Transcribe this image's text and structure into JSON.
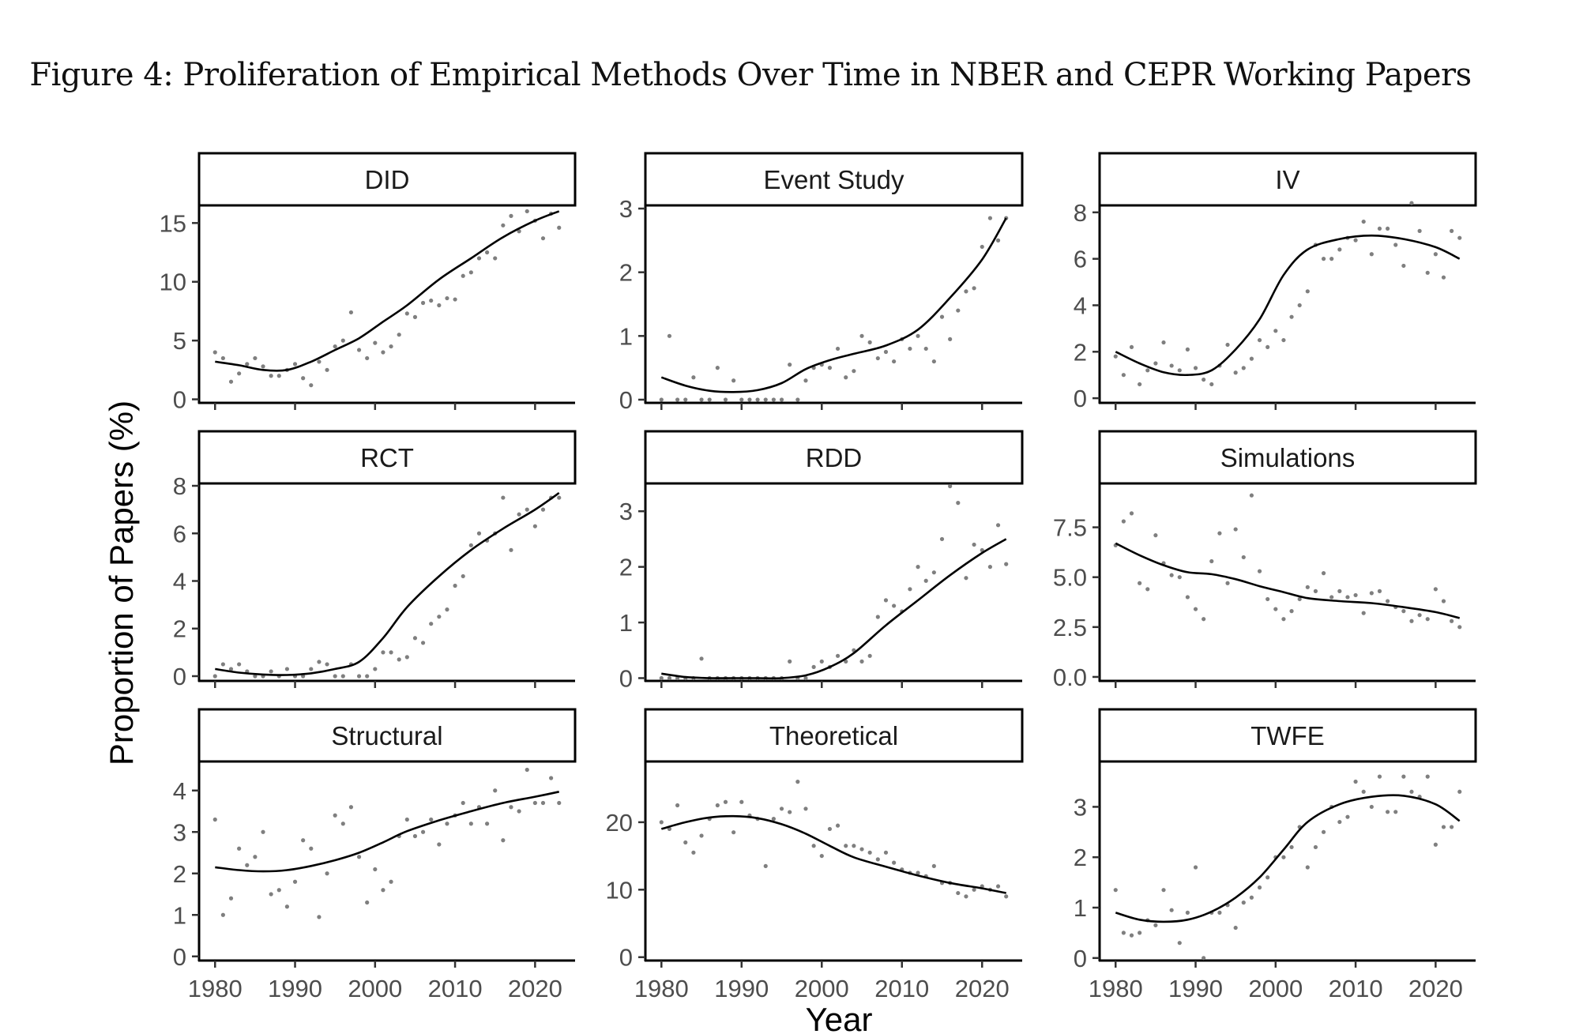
{
  "figure": {
    "title": "Figure 4: Proliferation of Empirical Methods Over Time in NBER and CEPR Working Papers"
  },
  "chart_data": {
    "type": "scatter",
    "layout": "3x3 facets",
    "xlabel": "Year",
    "ylabel": "Proportion of Papers (%)",
    "x_ticks": [
      1980,
      1990,
      2000,
      2010,
      2020
    ],
    "xlim": [
      1978,
      2025
    ],
    "point_color": "#7f7f7f",
    "line_color": "#000000",
    "panels": [
      {
        "name": "DID",
        "ylim": [
          -0.3,
          16.5
        ],
        "yticks": [
          0,
          5,
          10,
          15
        ],
        "ytick_labels": [
          "0",
          "5",
          "10",
          "15"
        ],
        "x": [
          1980,
          1981,
          1982,
          1983,
          1984,
          1985,
          1986,
          1987,
          1988,
          1989,
          1990,
          1991,
          1992,
          1993,
          1994,
          1995,
          1996,
          1997,
          1998,
          1999,
          2000,
          2001,
          2002,
          2003,
          2004,
          2005,
          2006,
          2007,
          2008,
          2009,
          2010,
          2011,
          2012,
          2013,
          2014,
          2015,
          2016,
          2017,
          2018,
          2019,
          2020,
          2021,
          2022,
          2023
        ],
        "points": [
          4.0,
          3.5,
          1.5,
          2.2,
          3.0,
          3.5,
          2.8,
          2.0,
          2.0,
          2.5,
          3.0,
          1.8,
          1.2,
          3.2,
          2.5,
          4.5,
          5.0,
          7.4,
          4.2,
          3.5,
          4.8,
          4.0,
          4.5,
          5.5,
          7.3,
          7.0,
          8.2,
          8.4,
          8.0,
          8.6,
          8.5,
          10.5,
          10.8,
          12.0,
          12.5,
          12.0,
          14.8,
          15.6,
          14.3,
          16.0,
          15.2,
          13.7,
          15.8,
          14.6
        ],
        "trend": [
          3.2,
          2.9,
          2.5,
          2.5,
          3.2,
          4.2,
          5.2,
          6.6,
          8.0,
          10.2,
          12.0,
          13.8,
          15.2,
          16.0
        ]
      },
      {
        "name": "Event Study",
        "ylim": [
          -0.05,
          3.05
        ],
        "yticks": [
          0,
          1,
          2,
          3
        ],
        "ytick_labels": [
          "0",
          "1",
          "2",
          "3"
        ],
        "x": [
          1980,
          1981,
          1982,
          1983,
          1984,
          1985,
          1986,
          1987,
          1988,
          1989,
          1990,
          1991,
          1992,
          1993,
          1994,
          1995,
          1996,
          1997,
          1998,
          1999,
          2000,
          2001,
          2002,
          2003,
          2004,
          2005,
          2006,
          2007,
          2008,
          2009,
          2010,
          2011,
          2012,
          2013,
          2014,
          2015,
          2016,
          2017,
          2018,
          2019,
          2020,
          2021,
          2022,
          2023
        ],
        "points": [
          0.0,
          1.0,
          0.0,
          0.0,
          0.35,
          0.0,
          0.0,
          0.5,
          0.0,
          0.3,
          0.0,
          0.0,
          0.0,
          0.0,
          0.0,
          0.0,
          0.55,
          0.0,
          0.3,
          0.5,
          0.55,
          0.5,
          0.8,
          0.35,
          0.45,
          1.0,
          0.9,
          0.65,
          0.75,
          0.6,
          0.95,
          0.8,
          1.0,
          0.8,
          0.6,
          1.3,
          0.95,
          1.4,
          1.7,
          1.75,
          2.4,
          2.85,
          2.5,
          2.85
        ],
        "trend": [
          0.35,
          0.22,
          0.14,
          0.12,
          0.15,
          0.26,
          0.48,
          0.62,
          0.72,
          0.85,
          1.1,
          1.6,
          2.2,
          2.85
        ]
      },
      {
        "name": "IV",
        "ylim": [
          -0.2,
          8.3
        ],
        "yticks": [
          0,
          2,
          4,
          6,
          8
        ],
        "ytick_labels": [
          "0",
          "2",
          "4",
          "6",
          "8"
        ],
        "x": [
          1980,
          1981,
          1982,
          1983,
          1984,
          1985,
          1986,
          1987,
          1988,
          1989,
          1990,
          1991,
          1992,
          1993,
          1994,
          1995,
          1996,
          1997,
          1998,
          1999,
          2000,
          2001,
          2002,
          2003,
          2004,
          2005,
          2006,
          2007,
          2008,
          2009,
          2010,
          2011,
          2012,
          2013,
          2014,
          2015,
          2016,
          2017,
          2018,
          2019,
          2020,
          2021,
          2022,
          2023
        ],
        "points": [
          1.8,
          1.0,
          2.2,
          0.6,
          1.2,
          1.5,
          2.4,
          1.4,
          1.2,
          2.1,
          1.3,
          0.8,
          0.6,
          1.4,
          2.3,
          1.1,
          1.3,
          1.7,
          2.5,
          2.2,
          2.9,
          2.5,
          3.5,
          4.0,
          4.6,
          6.6,
          6.0,
          6.0,
          6.4,
          6.9,
          6.8,
          7.6,
          6.2,
          7.3,
          7.3,
          6.6,
          5.7,
          8.4,
          7.2,
          5.4,
          6.2,
          5.2,
          7.2,
          6.9
        ],
        "trend": [
          2.0,
          1.5,
          1.12,
          1.0,
          1.2,
          2.1,
          3.4,
          5.3,
          6.4,
          6.85,
          7.0,
          6.85,
          6.5,
          6.0
        ]
      },
      {
        "name": "RCT",
        "ylim": [
          -0.2,
          8.1
        ],
        "yticks": [
          0,
          2,
          4,
          6,
          8
        ],
        "ytick_labels": [
          "0",
          "2",
          "4",
          "6",
          "8"
        ],
        "x": [
          1980,
          1981,
          1982,
          1983,
          1984,
          1985,
          1986,
          1987,
          1988,
          1989,
          1990,
          1991,
          1992,
          1993,
          1994,
          1995,
          1996,
          1997,
          1998,
          1999,
          2000,
          2001,
          2002,
          2003,
          2004,
          2005,
          2006,
          2007,
          2008,
          2009,
          2010,
          2011,
          2012,
          2013,
          2014,
          2015,
          2016,
          2017,
          2018,
          2019,
          2020,
          2021,
          2022,
          2023
        ],
        "points": [
          0.0,
          0.5,
          0.3,
          0.5,
          0.2,
          0.0,
          0.0,
          0.2,
          0.0,
          0.3,
          0.0,
          0.0,
          0.3,
          0.6,
          0.5,
          0.0,
          0.0,
          0.5,
          0.0,
          0.0,
          0.3,
          1.0,
          1.0,
          0.7,
          0.8,
          1.6,
          1.4,
          2.2,
          2.5,
          2.8,
          3.8,
          4.2,
          5.5,
          6.0,
          5.7,
          6.0,
          7.5,
          5.3,
          6.8,
          7.0,
          6.3,
          7.0,
          7.5,
          7.5
        ],
        "trend": [
          0.3,
          0.15,
          0.07,
          0.05,
          0.12,
          0.3,
          0.6,
          1.6,
          2.9,
          4.2,
          5.3,
          6.2,
          7.0,
          7.7
        ]
      },
      {
        "name": "RDD",
        "ylim": [
          -0.05,
          3.5
        ],
        "yticks": [
          0,
          1,
          2,
          3
        ],
        "ytick_labels": [
          "0",
          "1",
          "2",
          "3"
        ],
        "x": [
          1980,
          1981,
          1982,
          1983,
          1984,
          1985,
          1986,
          1987,
          1988,
          1989,
          1990,
          1991,
          1992,
          1993,
          1994,
          1995,
          1996,
          1997,
          1998,
          1999,
          2000,
          2001,
          2002,
          2003,
          2004,
          2005,
          2006,
          2007,
          2008,
          2009,
          2010,
          2011,
          2012,
          2013,
          2014,
          2015,
          2016,
          2017,
          2018,
          2019,
          2020,
          2021,
          2022,
          2023
        ],
        "points": [
          0.0,
          0.0,
          0.0,
          0.0,
          0.0,
          0.35,
          0.0,
          0.0,
          0.0,
          0.0,
          0.0,
          0.0,
          0.0,
          0.0,
          0.0,
          0.0,
          0.3,
          0.0,
          0.0,
          0.2,
          0.3,
          0.2,
          0.4,
          0.3,
          0.5,
          0.3,
          0.4,
          1.1,
          1.4,
          1.3,
          1.2,
          1.6,
          2.0,
          1.75,
          1.9,
          2.5,
          3.45,
          3.15,
          1.8,
          2.4,
          2.3,
          2.0,
          2.75,
          2.05
        ],
        "trend": [
          0.08,
          0.02,
          0.0,
          0.0,
          0.0,
          0.0,
          0.05,
          0.2,
          0.45,
          0.95,
          1.4,
          1.85,
          2.25,
          2.5
        ]
      },
      {
        "name": "Simulations",
        "ylim": [
          -0.2,
          9.7
        ],
        "yticks": [
          0,
          2.5,
          5,
          7.5
        ],
        "ytick_labels": [
          "0.0",
          "2.5",
          "5.0",
          "7.5"
        ],
        "x": [
          1980,
          1981,
          1982,
          1983,
          1984,
          1985,
          1986,
          1987,
          1988,
          1989,
          1990,
          1991,
          1992,
          1993,
          1994,
          1995,
          1996,
          1997,
          1998,
          1999,
          2000,
          2001,
          2002,
          2003,
          2004,
          2005,
          2006,
          2007,
          2008,
          2009,
          2010,
          2011,
          2012,
          2013,
          2014,
          2015,
          2016,
          2017,
          2018,
          2019,
          2020,
          2021,
          2022,
          2023
        ],
        "points": [
          6.6,
          7.8,
          8.2,
          4.7,
          4.4,
          7.1,
          5.7,
          5.1,
          5.0,
          4.0,
          3.4,
          2.9,
          5.8,
          7.2,
          4.7,
          7.4,
          6.0,
          9.1,
          5.3,
          3.9,
          3.4,
          2.9,
          3.3,
          3.9,
          4.5,
          4.3,
          5.2,
          4.0,
          4.3,
          4.0,
          4.1,
          3.2,
          4.2,
          4.3,
          3.8,
          3.5,
          3.3,
          2.8,
          3.1,
          2.9,
          4.4,
          3.8,
          2.8,
          2.5
        ],
        "trend": [
          6.7,
          6.1,
          5.6,
          5.25,
          5.15,
          4.9,
          4.55,
          4.25,
          3.95,
          3.8,
          3.7,
          3.5,
          3.25,
          2.95
        ]
      },
      {
        "name": "Structural",
        "ylim": [
          -0.1,
          4.7
        ],
        "yticks": [
          0,
          1,
          2,
          3,
          4
        ],
        "ytick_labels": [
          "0",
          "1",
          "2",
          "3",
          "4"
        ],
        "x": [
          1980,
          1981,
          1982,
          1983,
          1984,
          1985,
          1986,
          1987,
          1988,
          1989,
          1990,
          1991,
          1992,
          1993,
          1994,
          1995,
          1996,
          1997,
          1998,
          1999,
          2000,
          2001,
          2002,
          2003,
          2004,
          2005,
          2006,
          2007,
          2008,
          2009,
          2010,
          2011,
          2012,
          2013,
          2014,
          2015,
          2016,
          2017,
          2018,
          2019,
          2020,
          2021,
          2022,
          2023
        ],
        "points": [
          3.3,
          1.0,
          1.4,
          2.6,
          2.2,
          2.4,
          3.0,
          1.5,
          1.6,
          1.2,
          1.8,
          2.8,
          2.6,
          0.95,
          2.0,
          3.4,
          3.2,
          3.6,
          2.4,
          1.3,
          2.1,
          1.6,
          1.8,
          2.9,
          3.3,
          2.9,
          3.0,
          3.3,
          2.7,
          3.2,
          3.4,
          3.7,
          3.2,
          3.6,
          3.2,
          4.0,
          2.8,
          3.6,
          3.5,
          4.5,
          3.7,
          3.7,
          4.3,
          3.7
        ],
        "trend": [
          2.15,
          2.08,
          2.05,
          2.08,
          2.18,
          2.32,
          2.5,
          2.75,
          3.02,
          3.28,
          3.5,
          3.7,
          3.85,
          3.97
        ]
      },
      {
        "name": "Theoretical",
        "ylim": [
          -0.5,
          29.0
        ],
        "yticks": [
          0,
          10,
          20
        ],
        "ytick_labels": [
          "0",
          "10",
          "20"
        ],
        "x": [
          1980,
          1981,
          1982,
          1983,
          1984,
          1985,
          1986,
          1987,
          1988,
          1989,
          1990,
          1991,
          1992,
          1993,
          1994,
          1995,
          1996,
          1997,
          1998,
          1999,
          2000,
          2001,
          2002,
          2003,
          2004,
          2005,
          2006,
          2007,
          2008,
          2009,
          2010,
          2011,
          2012,
          2013,
          2014,
          2015,
          2016,
          2017,
          2018,
          2019,
          2020,
          2021,
          2022,
          2023
        ],
        "points": [
          20.0,
          19.0,
          22.5,
          17.0,
          15.5,
          18.0,
          20.5,
          22.5,
          23.0,
          18.5,
          23.0,
          21.0,
          20.5,
          13.5,
          20.5,
          22.0,
          21.5,
          26.0,
          22.0,
          16.5,
          15.0,
          19.0,
          19.5,
          16.5,
          16.5,
          16.0,
          15.5,
          14.5,
          15.5,
          14.0,
          13.0,
          12.5,
          12.5,
          12.0,
          13.5,
          11.0,
          11.0,
          9.5,
          9.0,
          10.0,
          10.5,
          10.0,
          10.5,
          9.0
        ],
        "trend": [
          19.0,
          20.0,
          20.7,
          20.9,
          20.6,
          19.7,
          18.3,
          16.5,
          14.8,
          13.4,
          12.1,
          11.0,
          10.2,
          9.5
        ]
      },
      {
        "name": "TWFE",
        "ylim": [
          -0.05,
          3.9
        ],
        "yticks": [
          0,
          1,
          2,
          3
        ],
        "ytick_labels": [
          "0",
          "1",
          "2",
          "3"
        ],
        "x": [
          1980,
          1981,
          1982,
          1983,
          1984,
          1985,
          1986,
          1987,
          1988,
          1989,
          1990,
          1991,
          1992,
          1993,
          1994,
          1995,
          1996,
          1997,
          1998,
          1999,
          2000,
          2001,
          2002,
          2003,
          2004,
          2005,
          2006,
          2007,
          2008,
          2009,
          2010,
          2011,
          2012,
          2013,
          2014,
          2015,
          2016,
          2017,
          2018,
          2019,
          2020,
          2021,
          2022,
          2023
        ],
        "points": [
          1.35,
          0.5,
          0.45,
          0.5,
          0.75,
          0.65,
          1.35,
          0.95,
          0.3,
          0.9,
          1.8,
          0.0,
          0.9,
          0.9,
          1.05,
          0.6,
          1.1,
          1.2,
          1.4,
          1.6,
          2.0,
          2.0,
          2.2,
          2.6,
          1.8,
          2.2,
          2.5,
          3.0,
          2.7,
          2.8,
          3.5,
          3.3,
          3.0,
          3.6,
          2.9,
          2.9,
          3.6,
          3.3,
          3.2,
          3.6,
          2.25,
          2.6,
          2.6,
          3.3
        ],
        "trend": [
          0.9,
          0.76,
          0.72,
          0.76,
          0.92,
          1.2,
          1.6,
          2.15,
          2.7,
          3.05,
          3.2,
          3.22,
          3.05,
          2.72
        ]
      }
    ]
  }
}
